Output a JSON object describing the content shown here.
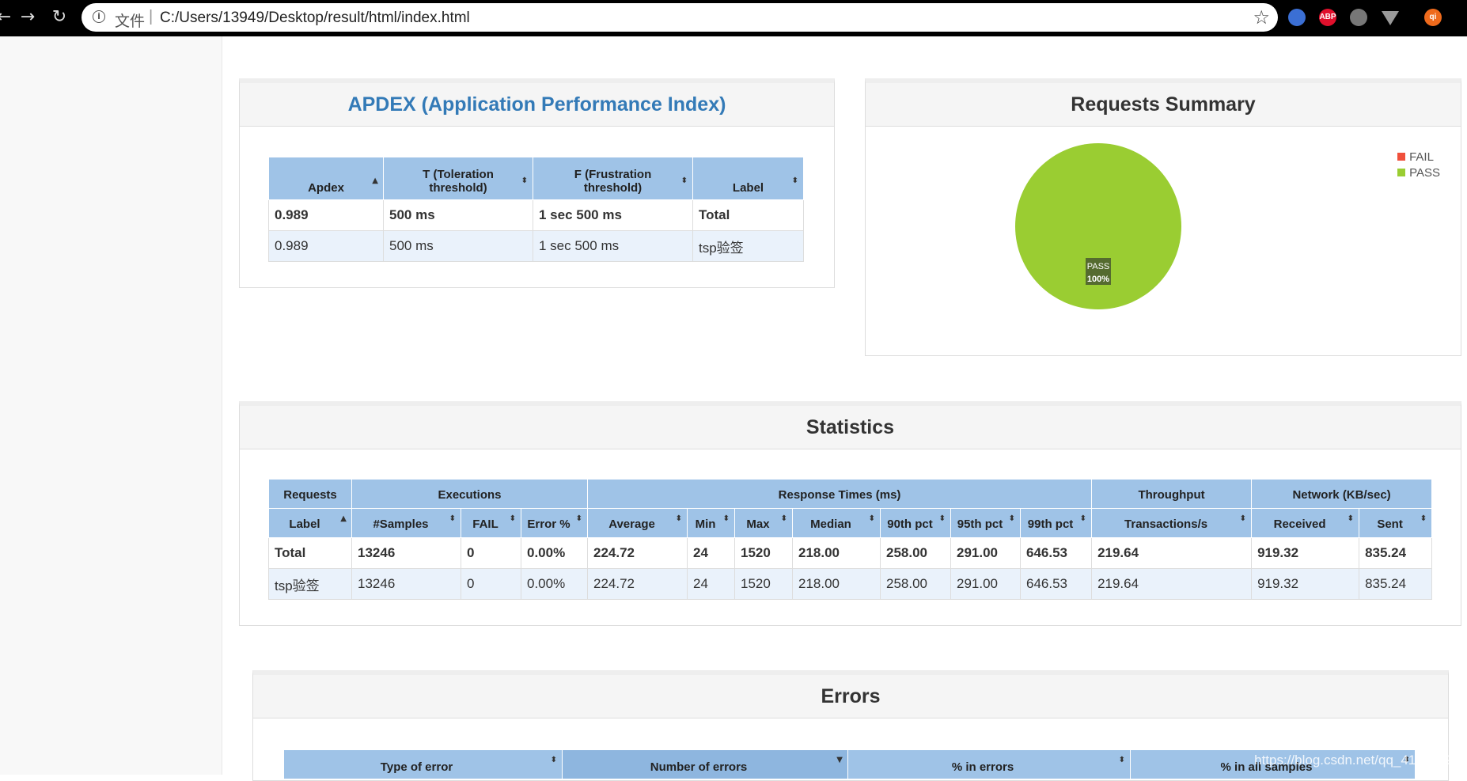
{
  "browser": {
    "address_prefix": "文件",
    "address_sep": "|",
    "url": "C:/Users/13949/Desktop/result/html/index.html",
    "extensions": [
      {
        "icon": "profile-extension-icon",
        "label": "",
        "color": "#3b6fd4"
      },
      {
        "icon": "adblock-icon",
        "label": "ABP",
        "color": "#e0102c"
      },
      {
        "icon": "incognito-extension-icon",
        "label": "",
        "color": "#777777"
      },
      {
        "icon": "vue-devtools-icon",
        "label": "",
        "color": "#999999"
      },
      {
        "icon": "user-avatar-icon",
        "label": "qi",
        "color": "#ee6a1c"
      }
    ]
  },
  "apdex": {
    "title": "APDEX (Application Performance Index)",
    "columns": [
      {
        "label": "Apdex",
        "sort_glyph": "▲"
      },
      {
        "label": "T (Toleration threshold)",
        "sort_glyph": "⬍"
      },
      {
        "label": "F (Frustration threshold)",
        "sort_glyph": "⬍"
      },
      {
        "label": "Label",
        "sort_glyph": "⬍"
      }
    ],
    "total": [
      "0.989",
      "500 ms",
      "1 sec 500 ms",
      "Total"
    ],
    "rows": [
      [
        "0.989",
        "500 ms",
        "1 sec 500 ms",
        "tsp验签"
      ]
    ]
  },
  "requests_summary": {
    "title": "Requests Summary",
    "legend": [
      {
        "name": "FAIL",
        "color": "#f0503c"
      },
      {
        "name": "PASS",
        "color": "#9acd32"
      }
    ]
  },
  "chart_data": {
    "type": "pie",
    "title": "Requests Summary",
    "slices": [
      {
        "name": "FAIL",
        "value": 0
      },
      {
        "name": "PASS",
        "value": 100
      }
    ],
    "slice_label": "PASS",
    "slice_percent": "100%",
    "legend_position": "top-right"
  },
  "statistics": {
    "title": "Statistics",
    "groups": [
      "Requests",
      "Executions",
      "Response Times (ms)",
      "Throughput",
      "Network (KB/sec)"
    ],
    "columns": [
      {
        "label": "Label",
        "sort_glyph": "▲"
      },
      {
        "label": "#Samples",
        "sort_glyph": "⬍"
      },
      {
        "label": "FAIL",
        "sort_glyph": "⬍"
      },
      {
        "label": "Error %",
        "sort_glyph": "⬍"
      },
      {
        "label": "Average",
        "sort_glyph": "⬍"
      },
      {
        "label": "Min",
        "sort_glyph": "⬍"
      },
      {
        "label": "Max",
        "sort_glyph": "⬍"
      },
      {
        "label": "Median",
        "sort_glyph": "⬍"
      },
      {
        "label": "90th pct",
        "sort_glyph": "⬍"
      },
      {
        "label": "95th pct",
        "sort_glyph": "⬍"
      },
      {
        "label": "99th pct",
        "sort_glyph": "⬍"
      },
      {
        "label": "Transactions/s",
        "sort_glyph": "⬍"
      },
      {
        "label": "Received",
        "sort_glyph": "⬍"
      },
      {
        "label": "Sent",
        "sort_glyph": "⬍"
      }
    ],
    "total": [
      "Total",
      "13246",
      "0",
      "0.00%",
      "224.72",
      "24",
      "1520",
      "218.00",
      "258.00",
      "291.00",
      "646.53",
      "219.64",
      "919.32",
      "835.24"
    ],
    "rows": [
      [
        "tsp验签",
        "13246",
        "0",
        "0.00%",
        "224.72",
        "24",
        "1520",
        "218.00",
        "258.00",
        "291.00",
        "646.53",
        "219.64",
        "919.32",
        "835.24"
      ]
    ]
  },
  "errors": {
    "title": "Errors",
    "columns": [
      {
        "label": "Type of error",
        "sort_glyph": "⬍"
      },
      {
        "label": "Number of errors",
        "sort_glyph": "▼"
      },
      {
        "label": "% in errors",
        "sort_glyph": "⬍"
      },
      {
        "label": "% in all samples",
        "sort_glyph": "⬍"
      }
    ]
  },
  "watermark": "https://blog.csdn.net/qq_41633199"
}
